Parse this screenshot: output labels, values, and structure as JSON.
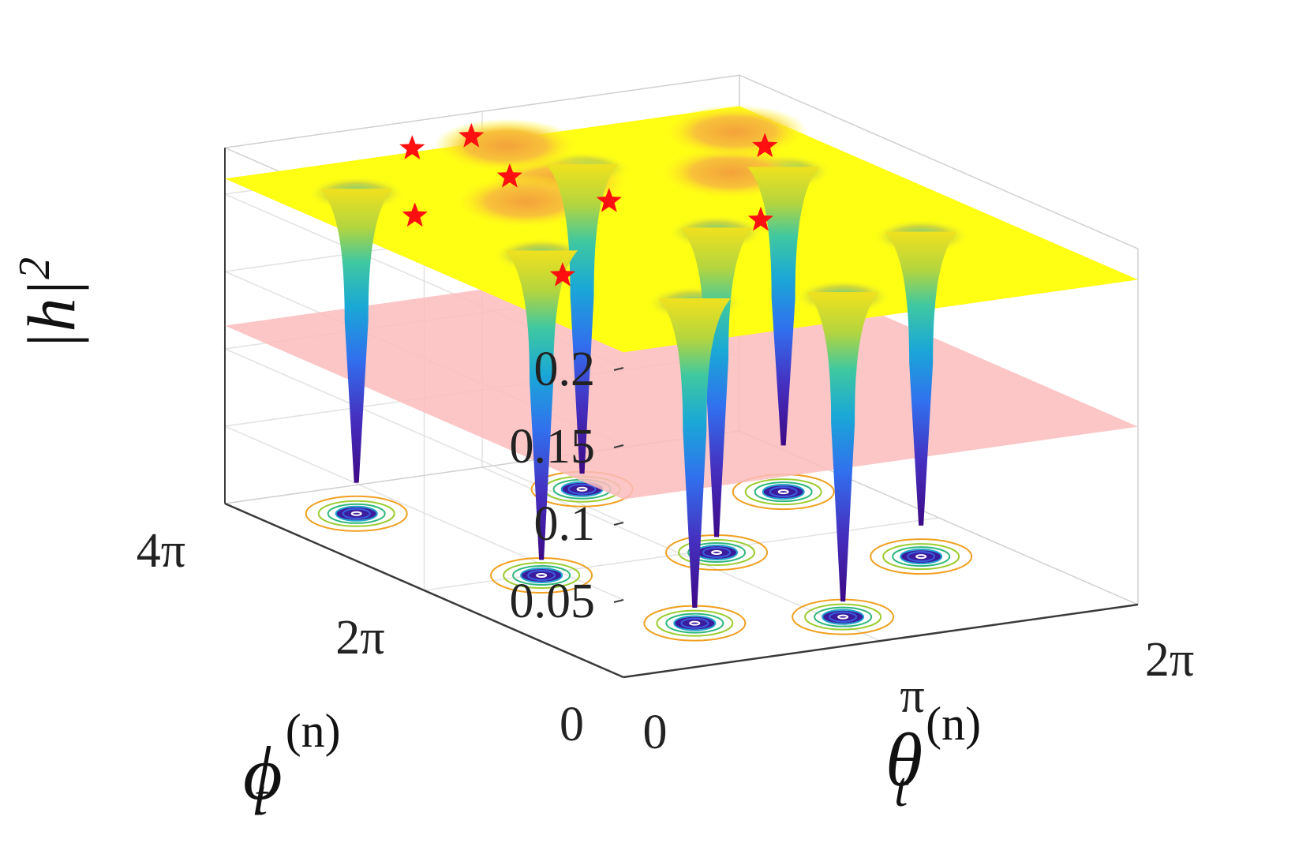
{
  "chart_data": {
    "type": "surface3d",
    "title": "",
    "zlabel": {
      "main": "|h|",
      "sup": "2"
    },
    "xlabel": {
      "main": "θ",
      "sub": "t",
      "sup": "(n)"
    },
    "ylabel": {
      "main": "ϕ",
      "sub": "t",
      "sup": "(n)"
    },
    "z_ticks": [
      "0.05",
      "0.1",
      "0.15",
      "0.2"
    ],
    "x_ticks": [
      "0",
      "π",
      "2π"
    ],
    "y_ticks": [
      "0",
      "2π",
      "4π"
    ],
    "xlim": [
      0,
      6.2832
    ],
    "ylim": [
      0,
      12.5664
    ],
    "zlim": [
      0,
      0.23
    ],
    "plateau_level": 0.21,
    "threshold_plane_level": 0.115,
    "deep_wells": [
      {
        "theta": 1.0,
        "phi": 11.0,
        "min": 0.02
      },
      {
        "theta": 1.4,
        "phi": 6.2,
        "min": 0.01
      },
      {
        "theta": 1.8,
        "phi": 2.4,
        "min": 0.01
      },
      {
        "theta": 3.3,
        "phi": 1.6,
        "min": 0.01
      },
      {
        "theta": 3.5,
        "phi": 6.1,
        "min": 0.01
      },
      {
        "theta": 3.6,
        "phi": 10.6,
        "min": 0.01
      },
      {
        "theta": 5.3,
        "phi": 4.3,
        "min": 0.02
      },
      {
        "theta": 5.4,
        "phi": 8.9,
        "min": 0.03
      }
    ],
    "shallow_dips": [
      {
        "theta": 3.0,
        "phi": 9.8
      },
      {
        "theta": 3.3,
        "phi": 12.2
      },
      {
        "theta": 4.8,
        "phi": 9.0
      },
      {
        "theta": 5.7,
        "phi": 11.2
      },
      {
        "theta": 2.3,
        "phi": 9.0
      }
    ],
    "maxima_markers": [
      {
        "theta": 0.9,
        "phi": 8.9,
        "z": 0.21
      },
      {
        "theta": 1.0,
        "phi": 4.5,
        "z": 0.21
      },
      {
        "theta": 2.6,
        "phi": 10.3,
        "z": 0.21
      },
      {
        "theta": 2.3,
        "phi": 12.6,
        "z": 0.21
      },
      {
        "theta": 3.1,
        "phi": 12.8,
        "z": 0.21
      },
      {
        "theta": 3.0,
        "phi": 8.2,
        "z": 0.21
      },
      {
        "theta": 4.0,
        "phi": 6.0,
        "z": 0.21
      },
      {
        "theta": 5.6,
        "phi": 10.0,
        "z": 0.21
      }
    ],
    "colors": {
      "plateau": "#ffff14",
      "threshold_plane": "#fbbcbc",
      "marker": "#ff1010",
      "colormap": [
        "#3d0a86",
        "#473de0",
        "#2e7ef0",
        "#16b6c9",
        "#5fd27f",
        "#c7d23a",
        "#f5b944",
        "#ffff14"
      ]
    }
  }
}
